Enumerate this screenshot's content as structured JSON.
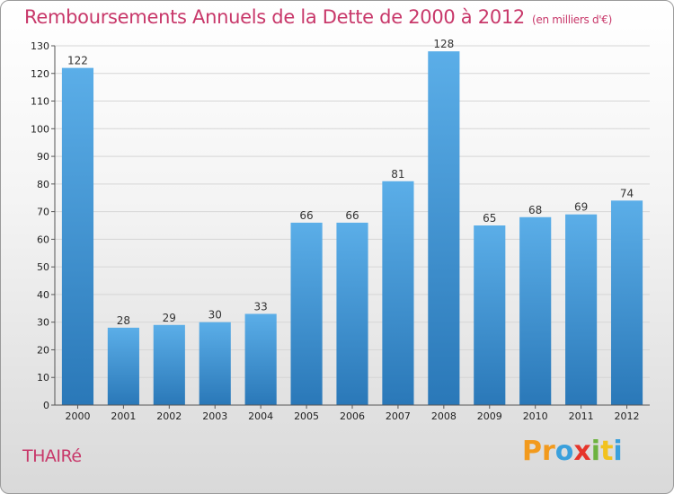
{
  "header": {
    "title": "Remboursements Annuels de la Dette de 2000 à 2012",
    "subtitle": "(en milliers d'€)"
  },
  "footer": {
    "place": "THAIRé",
    "logo_parts": [
      "Pr",
      "o",
      "x",
      "i",
      "t",
      "i"
    ]
  },
  "colors": {
    "bar_top": "#5baee8",
    "bar_bottom": "#2a78b8",
    "title": "#c8386a",
    "gridline": "#d6d6d6"
  },
  "chart_data": {
    "type": "bar",
    "title": "Remboursements Annuels de la Dette de 2000 à 2012",
    "subtitle": "(en milliers d'€)",
    "categories": [
      "2000",
      "2001",
      "2002",
      "2003",
      "2004",
      "2005",
      "2006",
      "2007",
      "2008",
      "2009",
      "2010",
      "2011",
      "2012"
    ],
    "values": [
      122,
      28,
      29,
      30,
      33,
      66,
      66,
      81,
      128,
      65,
      68,
      69,
      74
    ],
    "ylim": [
      0,
      130
    ],
    "yticks": [
      0,
      10,
      20,
      30,
      40,
      50,
      60,
      70,
      80,
      90,
      100,
      110,
      120,
      130
    ],
    "grid": true,
    "xlabel": "",
    "ylabel": ""
  }
}
